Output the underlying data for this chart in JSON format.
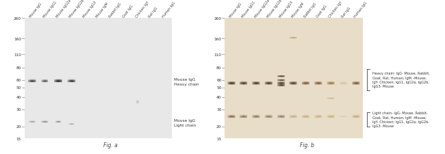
{
  "fig_width": 6.5,
  "fig_height": 2.26,
  "dpi": 100,
  "background": "#ffffff",
  "lane_labels": [
    "Mouse IgG",
    "Mouse IgG1",
    "Mouse IgG2a",
    "Mouse IgG2b",
    "Mouse IgG3",
    "Mouse IgM",
    "Rabbit IgG",
    "Goat IgG",
    "Chicken IgY",
    "Rat IgG",
    "Human IgG"
  ],
  "mw_markers_a": [
    260,
    160,
    110,
    80,
    60,
    50,
    40,
    30,
    20,
    15
  ],
  "mw_markers_b": [
    260,
    160,
    110,
    80,
    60,
    50,
    40,
    30,
    20,
    15
  ],
  "fig_a_label": "Fig. a",
  "fig_b_label": "Fig. b",
  "label_heavy_chain_a": "Mouse IgG\nHeavy chain",
  "label_light_chain_a": "Mouse IgG\nLight chain",
  "label_heavy_chain_b": "Heavy chain- IgG- Mouse, Rabbit,\nGoat, Rat, Human; IgM –Mouse;\nIgY- Chicken; IgG1, IgG2a, IgG2b,\nIgG3- Mouse",
  "label_light_chain_b": "Light chain- IgG- Mouse, Rabbit,\nGoat, Rat, Human; IgM –Mouse;\nIgY- Chicken; IgG1, IgG2a, IgG2b,\nIgG3- Mouse"
}
